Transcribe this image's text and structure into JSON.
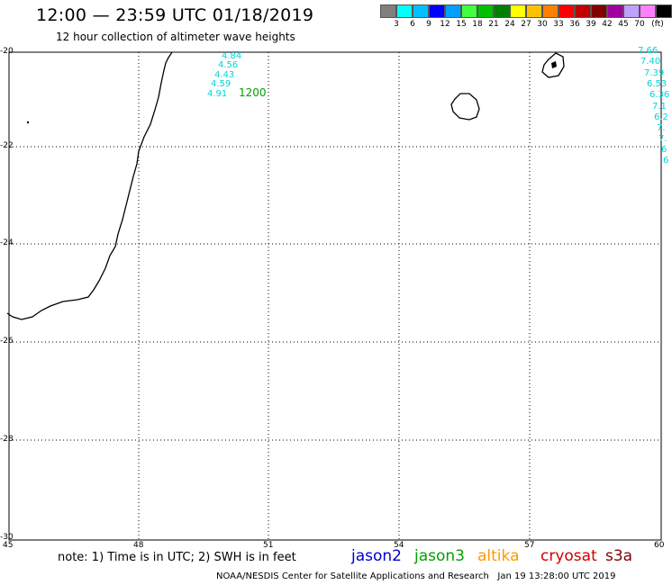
{
  "header": {
    "title": "12:00 — 23:59 UTC 01/18/2019",
    "subtitle": "12 hour collection of altimeter wave heights"
  },
  "colorbar": {
    "colors": [
      "#808080",
      "#00ffff",
      "#00c0ff",
      "#0000ff",
      "#00a0ff",
      "#40ff40",
      "#00c000",
      "#008000",
      "#ffff00",
      "#ffc000",
      "#ff8000",
      "#ff0000",
      "#c00000",
      "#800000",
      "#a000a0",
      "#c0a0ff",
      "#ff80ff",
      "#000000"
    ],
    "labels": [
      "3",
      "6",
      "9",
      "12",
      "15",
      "18",
      "21",
      "24",
      "27",
      "30",
      "33",
      "36",
      "39",
      "42",
      "45",
      "70"
    ],
    "unit": "(ft)"
  },
  "map": {
    "lat_ticks": [
      "-20",
      "-22",
      "-24",
      "-26",
      "-28",
      "-30"
    ],
    "lon_ticks": [
      "45",
      "48",
      "51",
      "54",
      "57",
      "60"
    ]
  },
  "track_left": {
    "values": [
      "4.84",
      "4.56",
      "4.43",
      "4.59",
      "4.91"
    ],
    "time": "1200"
  },
  "track_right": {
    "values": [
      "7.66",
      "7.40",
      "7.39",
      "6.53",
      "6.36",
      "7.1",
      "6.2",
      "7.",
      "7.",
      "6",
      "6"
    ]
  },
  "footer": {
    "note": "note: 1) Time is in UTC; 2) SWH is in feet",
    "satellites": [
      {
        "name": "jason2",
        "color": "#0000cc"
      },
      {
        "name": "jason3",
        "color": "#00a000"
      },
      {
        "name": "altika",
        "color": "#ff9900"
      },
      {
        "name": "cryosat",
        "color": "#cc0000"
      },
      {
        "name": "s3a",
        "color": "#800000"
      }
    ],
    "credit": "NOAA/NESDIS Center for Satellite Applications and Research",
    "timestamp": "Jan 19 13:28:00 UTC 2019"
  }
}
